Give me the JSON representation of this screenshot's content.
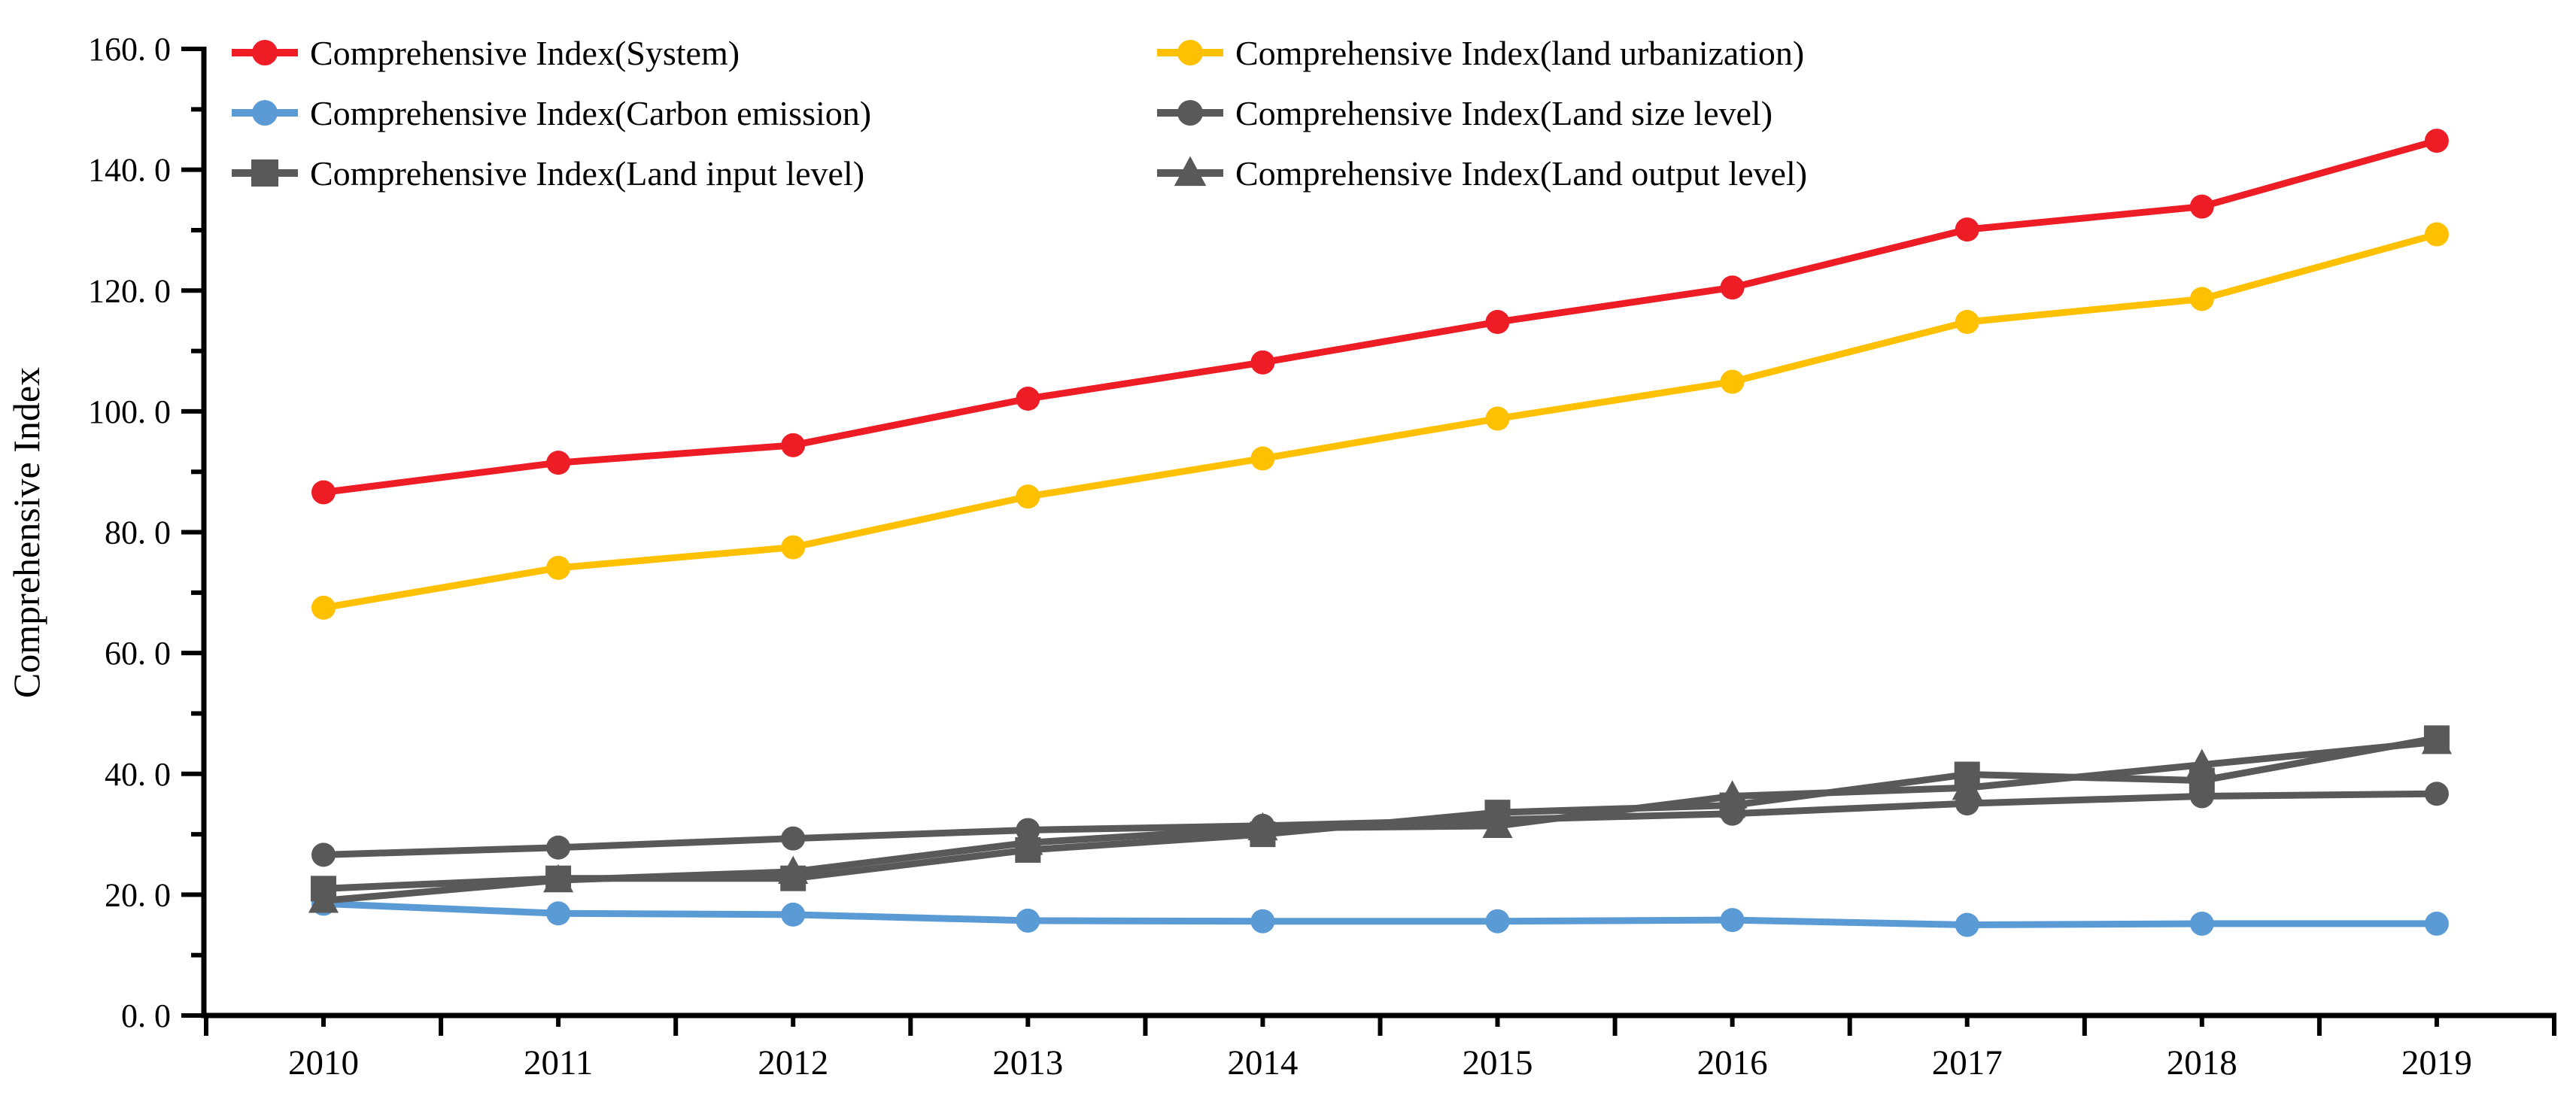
{
  "page": {
    "background": "#ffffff",
    "text_color": "#000000"
  },
  "axes": {
    "y_title": "Comprehensive Index",
    "y_tick_labels": [
      "0. 0",
      "20. 0",
      "40. 0",
      "60. 0",
      "80. 0",
      "100. 0",
      "120. 0",
      "140. 0",
      "160. 0"
    ],
    "x_tick_labels": [
      "2010",
      "2011",
      "2012",
      "2013",
      "2014",
      "2015",
      "2016",
      "2017",
      "2018",
      "2019"
    ]
  },
  "legend": {
    "columns": [
      [
        "system",
        "carbon-emission",
        "land-input-level"
      ],
      [
        "land-urbanization",
        "land-size-level",
        "land-output-level"
      ]
    ]
  },
  "chart_data": {
    "type": "line",
    "title": "",
    "xlabel": "",
    "ylabel": "Comprehensive Index",
    "x": [
      2010,
      2011,
      2012,
      2013,
      2014,
      2015,
      2016,
      2017,
      2018,
      2019
    ],
    "ylim": [
      0,
      160
    ],
    "y_major_step": 20,
    "y_minor_step": 10,
    "grid": false,
    "legend_position": "top-left, two columns",
    "draw_order": [
      "carbon-emission",
      "land-output-level",
      "land-input-level",
      "land-size-level",
      "land-urbanization",
      "system"
    ],
    "series": [
      {
        "key": "system",
        "name": "Comprehensive Index(System)",
        "color": "#EE1C25",
        "marker": "circle",
        "values": [
          86.6,
          91.5,
          94.4,
          102.1,
          108.1,
          114.8,
          120.5,
          130.1,
          133.9,
          144.8
        ]
      },
      {
        "key": "land-urbanization",
        "name": "Comprehensive Index(land urbanization)",
        "color": "#FFC000",
        "marker": "circle",
        "values": [
          67.5,
          74.1,
          77.5,
          85.9,
          92.2,
          98.8,
          104.9,
          114.8,
          118.6,
          129.3
        ]
      },
      {
        "key": "carbon-emission",
        "name": "Comprehensive Index(Carbon emission)",
        "color": "#5B9BD5",
        "marker": "circle",
        "values": [
          18.5,
          16.9,
          16.7,
          15.7,
          15.6,
          15.6,
          15.8,
          15.0,
          15.2,
          15.2
        ]
      },
      {
        "key": "land-size-level",
        "name": "Comprehensive Index(Land size level)",
        "color": "#595959",
        "marker": "circle",
        "values": [
          26.6,
          27.8,
          29.3,
          30.7,
          31.4,
          32.4,
          33.4,
          35.1,
          36.3,
          36.7
        ]
      },
      {
        "key": "land-input-level",
        "name": "Comprehensive Index(Land input level)",
        "color": "#595959",
        "marker": "square",
        "values": [
          21.0,
          22.7,
          22.7,
          27.4,
          30.0,
          33.6,
          34.8,
          39.9,
          38.9,
          45.9
        ]
      },
      {
        "key": "land-output-level",
        "name": "Comprehensive Index(Land output level)",
        "color": "#595959",
        "marker": "triangle",
        "values": [
          19.0,
          22.4,
          23.8,
          28.6,
          31.0,
          31.4,
          36.3,
          37.7,
          41.5,
          45.3
        ]
      }
    ]
  }
}
